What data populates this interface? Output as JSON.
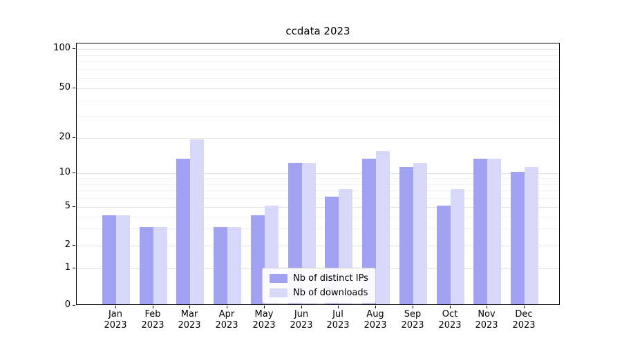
{
  "title": "ccdata 2023",
  "chart_data": {
    "type": "bar",
    "title": "ccdata 2023",
    "yscale": "symlog",
    "ylim": [
      0,
      100
    ],
    "yticks": [
      0,
      1,
      2,
      5,
      10,
      20,
      50,
      100
    ],
    "ytick_labels": [
      "0",
      "1",
      "2",
      "5",
      "10",
      "20",
      "50",
      "100"
    ],
    "minor_gridlines": [
      3,
      4,
      6,
      7,
      8,
      9,
      30,
      40,
      60,
      70,
      80,
      90
    ],
    "grid": true,
    "legend_position": "lower-center-inside",
    "categories": [
      "Jan 2023",
      "Feb 2023",
      "Mar 2023",
      "Apr 2023",
      "May 2023",
      "Jun 2023",
      "Jul 2023",
      "Aug 2023",
      "Sep 2023",
      "Oct 2023",
      "Nov 2023",
      "Dec 2023"
    ],
    "series": [
      {
        "name": "Nb of distinct IPs",
        "color": "#a2a2f2",
        "values": [
          4,
          3,
          13,
          3,
          4,
          12,
          6,
          13,
          11,
          5,
          13,
          10
        ]
      },
      {
        "name": "Nb of downloads",
        "color": "#d8d8f8",
        "values": [
          4,
          3,
          19,
          3,
          5,
          12,
          7,
          15,
          12,
          7,
          13,
          11
        ]
      }
    ]
  }
}
